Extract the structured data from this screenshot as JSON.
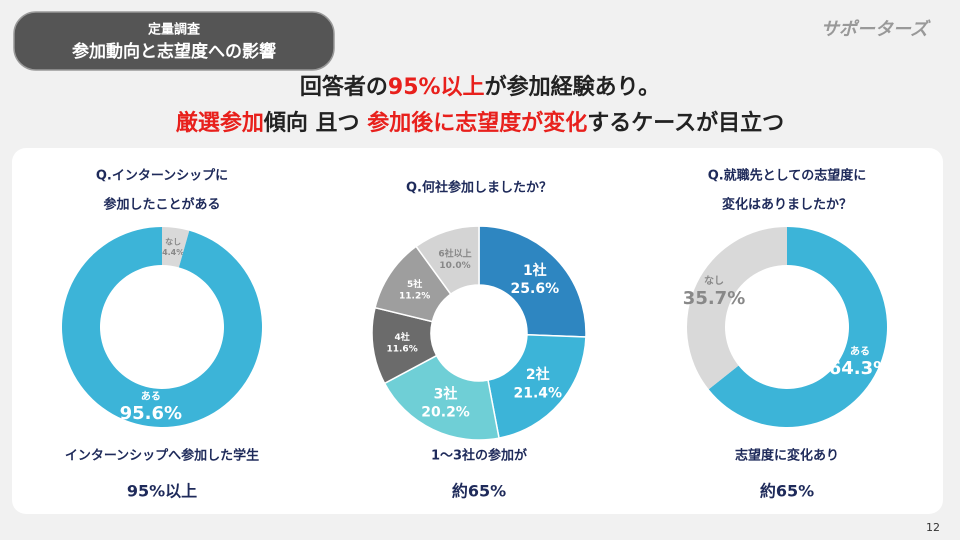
{
  "header": {
    "tag": "定量調査",
    "title": "参加動向と志望度への影響"
  },
  "logo": "サポーターズ",
  "highlight_color": "#e8201c",
  "headline": [
    [
      {
        "text": "回答者の"
      },
      {
        "text": "95%以上",
        "highlight": true
      },
      {
        "text": "が参加経験あり。"
      }
    ],
    [
      {
        "text": "厳選参加",
        "highlight": true
      },
      {
        "text": "傾向 且つ "
      },
      {
        "text": "参加後に志望度が変化",
        "highlight": true
      },
      {
        "text": "するケースが目立つ"
      }
    ]
  ],
  "chart_data": [
    {
      "type": "donut",
      "question": [
        "Q.インターンシップに",
        "参加したことがある"
      ],
      "categories": [
        "なし",
        "ある"
      ],
      "values": [
        4.4,
        95.6
      ],
      "value_labels": [
        "4.4%",
        "95.6%"
      ],
      "colors": [
        "#d9d9d9",
        "#3cb4d8"
      ],
      "summary": [
        "インターンシップへ参加した学生",
        "95%以上"
      ]
    },
    {
      "type": "donut",
      "question": [
        "Q.何社参加しましたか？"
      ],
      "categories": [
        "1社",
        "2社",
        "3社",
        "4社",
        "5社",
        "6社以上"
      ],
      "values": [
        25.6,
        21.4,
        20.2,
        11.6,
        11.2,
        10.0
      ],
      "value_labels": [
        "25.6%",
        "21.4%",
        "20.2%",
        "11.6%",
        "11.2%",
        "10.0%"
      ],
      "colors": [
        "#2e86c1",
        "#3cb4d8",
        "#6fcfd6",
        "#6b6b6b",
        "#9e9e9e",
        "#d4d4d4"
      ],
      "summary": [
        "1〜3社の参加が",
        "約65%"
      ]
    },
    {
      "type": "donut",
      "question": [
        "Q.就職先としての志望度に",
        "変化はありましたか？"
      ],
      "categories": [
        "ある",
        "なし"
      ],
      "values": [
        64.3,
        35.7
      ],
      "value_labels": [
        "64.3%",
        "35.7%"
      ],
      "colors": [
        "#3cb4d8",
        "#d9d9d9"
      ],
      "summary": [
        "志望度に変化あり",
        "約65%"
      ]
    }
  ],
  "page_number": "12"
}
